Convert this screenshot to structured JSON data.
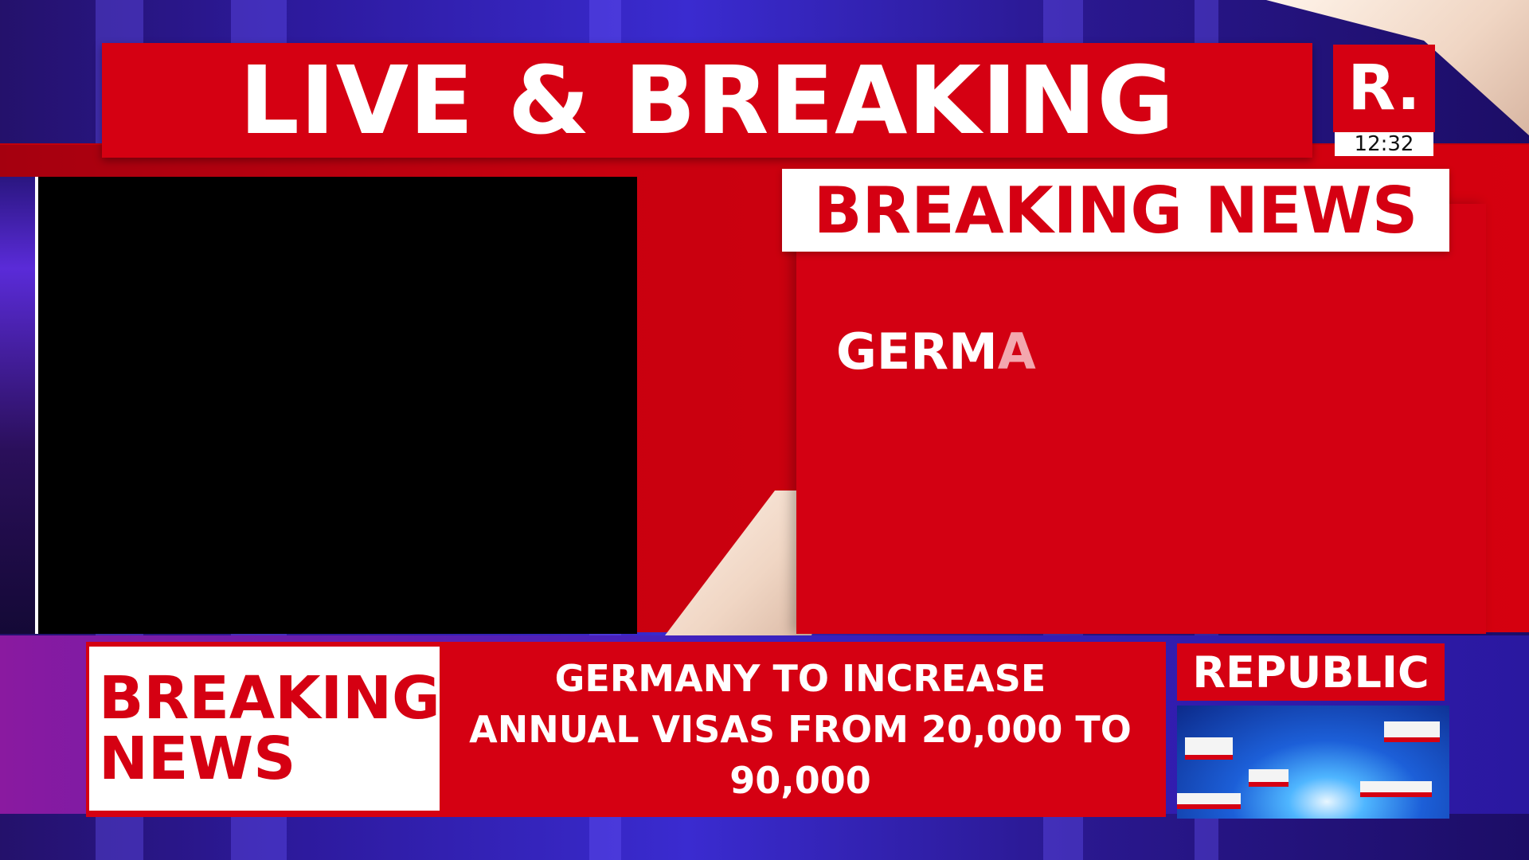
{
  "header": {
    "title": "LIVE & BREAKING"
  },
  "logo": {
    "mark": "R.",
    "clock": "12:32"
  },
  "panel": {
    "heading": "BREAKING NEWS",
    "text_solid": "GERM",
    "text_fading": "A"
  },
  "ticker": {
    "label_line1": "BREAKING",
    "label_line2": "NEWS",
    "headline_line1": "GERMANY TO INCREASE",
    "headline_line2": "ANNUAL VISAS FROM 20,000 TO",
    "headline_line3": "90,000"
  },
  "brand": {
    "label": "REPUBLIC"
  },
  "colors": {
    "brand_red": "#d50012",
    "background_blue": "#2d1a9e",
    "white": "#ffffff"
  }
}
